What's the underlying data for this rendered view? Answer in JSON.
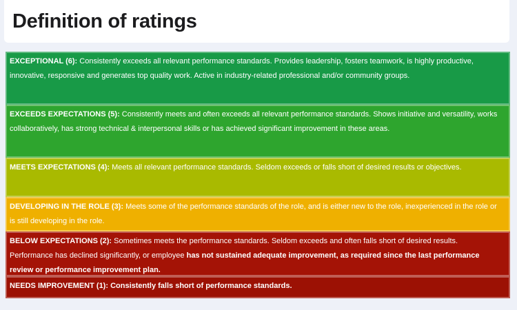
{
  "page": {
    "title": "Definition of ratings"
  },
  "palette": {
    "page_background": "#eef1f8",
    "header_background": "#ffffff",
    "title_color": "#1c1c1e",
    "row_text_color": "#ffffff"
  },
  "ratings": [
    {
      "name": "EXCEPTIONAL",
      "score": 6,
      "color": "#189A47",
      "segments": [
        {
          "text": "EXCEPTIONAL (6): ",
          "bold": true
        },
        {
          "text": "Consistently exceeds all relevant performance standards. Provides leadership, fosters teamwork, is highly productive, innovative, responsive and generates top quality work. Active in industry-related professional and/or community groups.",
          "bold": false
        }
      ]
    },
    {
      "name": "EXCEEDS EXPECTATIONS",
      "score": 5,
      "color": "#2EA52E",
      "segments": [
        {
          "text": "EXCEEDS EXPECTATIONS (5): ",
          "bold": true
        },
        {
          "text": "Consistently meets and often exceeds all relevant performance standards. Shows initiative and versatility, works collaboratively, has strong technical & interpersonal skills or has achieved significant improvement in these areas.",
          "bold": false
        }
      ]
    },
    {
      "name": "MEETS EXPECTATIONS",
      "score": 4,
      "color": "#A9BA00",
      "segments": [
        {
          "text": "MEETS EXPECTATIONS (4): ",
          "bold": true
        },
        {
          "text": "Meets all relevant performance standards. Seldom exceeds or falls short of desired results or objectives.",
          "bold": false
        }
      ]
    },
    {
      "name": "DEVELOPING IN THE ROLE",
      "score": 3,
      "color": "#EFB000",
      "segments": [
        {
          "text": "DEVELOPING IN THE ROLE (3): ",
          "bold": true
        },
        {
          "text": "Meets some of the performance standards of the role, and is either new to the role, inexperienced in the role or is still developing in the role.",
          "bold": false
        }
      ]
    },
    {
      "name": "BELOW EXPECTATIONS",
      "score": 2,
      "color": "#A41306",
      "segments": [
        {
          "text": "BELOW EXPECTATIONS (2): ",
          "bold": true
        },
        {
          "text": "Sometimes meets the performance standards. Seldom exceeds and often falls short of desired results. Performance has declined significantly, or employee ",
          "bold": false
        },
        {
          "text": "has not sustained adequate improvement, as required since the last performance review or performance improvement plan.",
          "bold": true
        }
      ]
    },
    {
      "name": "NEEDS IMPROVEMENT",
      "score": 1,
      "color": "#9C1104",
      "segments": [
        {
          "text": "NEEDS IMPROVEMENT (1): Consistently falls short of performance standards.",
          "bold": true
        }
      ]
    }
  ]
}
